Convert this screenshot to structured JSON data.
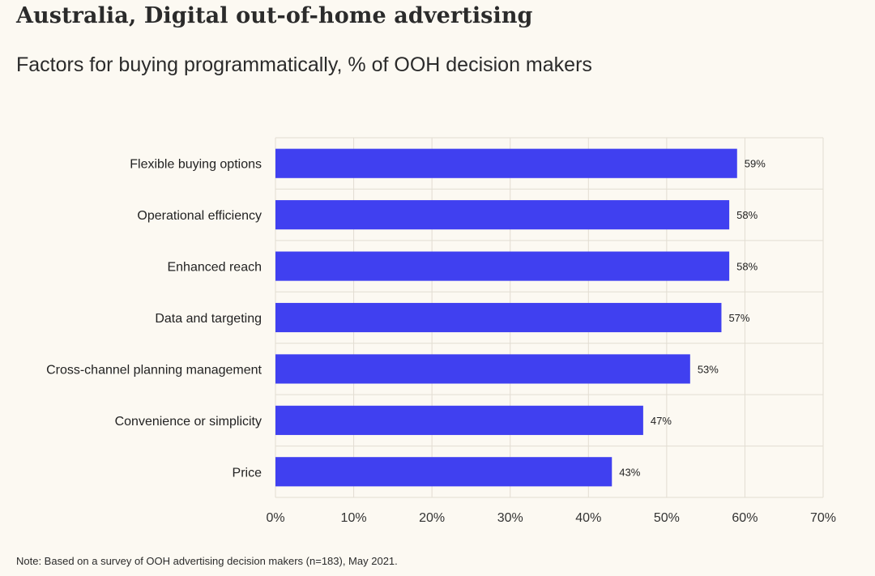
{
  "header": {
    "title": "Australia, Digital out-of-home advertising",
    "subtitle": "Factors for buying programmatically, % of OOH decision makers"
  },
  "footer": {
    "note": "Note: Based on a survey of OOH advertising decision makers (n=183), May 2021."
  },
  "colors": {
    "bar": "#4040f0",
    "grid": "#e2ddd2",
    "background": "#fcf9f2"
  },
  "chart_data": {
    "type": "bar",
    "orientation": "horizontal",
    "title": "Australia, Digital out-of-home advertising",
    "subtitle": "Factors for buying programmatically, % of OOH decision makers",
    "xlabel": "",
    "ylabel": "",
    "categories": [
      "Flexible buying options",
      "Operational efficiency",
      "Enhanced reach",
      "Data and targeting",
      "Cross-channel planning management",
      "Convenience or simplicity",
      "Price"
    ],
    "values": [
      59,
      58,
      58,
      57,
      53,
      47,
      43
    ],
    "value_labels": [
      "59%",
      "58%",
      "58%",
      "57%",
      "53%",
      "47%",
      "43%"
    ],
    "xlim": [
      0,
      70
    ],
    "x_ticks": [
      "0%",
      "10%",
      "20%",
      "30%",
      "40%",
      "50%",
      "60%",
      "70%"
    ],
    "grid": true,
    "legend": "none"
  }
}
